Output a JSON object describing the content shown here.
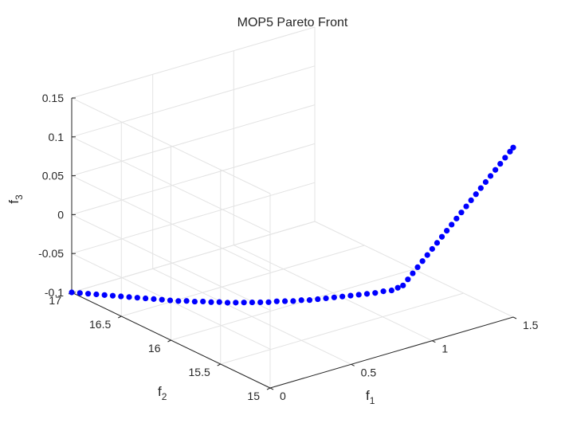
{
  "chart_data": {
    "type": "scatter",
    "title": "MOP5 Pareto Front",
    "xlabel": {
      "main": "f",
      "sub": "1"
    },
    "ylabel": {
      "main": "f",
      "sub": "2"
    },
    "zlabel": {
      "main": "f",
      "sub": "3"
    },
    "xlim": [
      0,
      1.5
    ],
    "ylim": [
      15,
      17
    ],
    "zlim": [
      -0.1,
      0.15
    ],
    "x_ticks": [
      "0",
      "0.5",
      "1",
      "1.5"
    ],
    "y_ticks": [
      "15",
      "15.5",
      "16",
      "16.5",
      "17"
    ],
    "z_ticks": [
      "-0.1",
      "-0.05",
      "0",
      "0.05",
      "0.1",
      "0.15"
    ],
    "grid": true,
    "marker_color": "#0000ff",
    "points": [
      [
        0.0,
        17.0,
        -0.1
      ],
      [
        0.02,
        16.95,
        -0.099
      ],
      [
        0.04,
        16.9,
        -0.098
      ],
      [
        0.06,
        16.85,
        -0.097
      ],
      [
        0.08,
        16.8,
        -0.096
      ],
      [
        0.1,
        16.75,
        -0.095
      ],
      [
        0.12,
        16.7,
        -0.094
      ],
      [
        0.14,
        16.65,
        -0.093
      ],
      [
        0.16,
        16.6,
        -0.092
      ],
      [
        0.18,
        16.55,
        -0.091
      ],
      [
        0.2,
        16.5,
        -0.09
      ],
      [
        0.22,
        16.45,
        -0.089
      ],
      [
        0.24,
        16.4,
        -0.088
      ],
      [
        0.26,
        16.35,
        -0.087
      ],
      [
        0.28,
        16.3,
        -0.085
      ],
      [
        0.3,
        16.25,
        -0.084
      ],
      [
        0.32,
        16.2,
        -0.082
      ],
      [
        0.34,
        16.15,
        -0.081
      ],
      [
        0.36,
        16.1,
        -0.079
      ],
      [
        0.38,
        16.05,
        -0.078
      ],
      [
        0.4,
        16.0,
        -0.076
      ],
      [
        0.42,
        15.95,
        -0.074
      ],
      [
        0.44,
        15.9,
        -0.072
      ],
      [
        0.46,
        15.85,
        -0.07
      ],
      [
        0.48,
        15.8,
        -0.068
      ],
      [
        0.5,
        15.75,
        -0.065
      ],
      [
        0.52,
        15.7,
        -0.063
      ],
      [
        0.54,
        15.65,
        -0.061
      ],
      [
        0.56,
        15.6,
        -0.058
      ],
      [
        0.58,
        15.55,
        -0.056
      ],
      [
        0.6,
        15.5,
        -0.053
      ],
      [
        0.62,
        15.45,
        -0.05
      ],
      [
        0.64,
        15.4,
        -0.047
      ],
      [
        0.66,
        15.35,
        -0.044
      ],
      [
        0.68,
        15.3,
        -0.041
      ],
      [
        0.7,
        15.25,
        -0.038
      ],
      [
        0.72,
        15.2,
        -0.035
      ],
      [
        0.74,
        15.15,
        -0.032
      ],
      [
        0.76,
        15.1,
        -0.028
      ],
      [
        0.78,
        15.05,
        -0.025
      ],
      [
        0.8,
        15.02,
        -0.021
      ],
      [
        0.82,
        15.0,
        -0.018
      ],
      [
        0.85,
        15.0,
        -0.012
      ],
      [
        0.88,
        15.0,
        -0.006
      ],
      [
        0.91,
        15.0,
        0.0
      ],
      [
        0.94,
        15.0,
        0.006
      ],
      [
        0.97,
        15.0,
        0.012
      ],
      [
        1.0,
        15.0,
        0.018
      ],
      [
        1.03,
        15.0,
        0.024
      ],
      [
        1.06,
        15.0,
        0.03
      ],
      [
        1.09,
        15.0,
        0.036
      ],
      [
        1.12,
        15.0,
        0.042
      ],
      [
        1.15,
        15.0,
        0.048
      ],
      [
        1.18,
        15.0,
        0.054
      ],
      [
        1.21,
        15.0,
        0.06
      ],
      [
        1.24,
        15.0,
        0.066
      ],
      [
        1.27,
        15.0,
        0.072
      ],
      [
        1.3,
        15.0,
        0.078
      ],
      [
        1.33,
        15.0,
        0.084
      ],
      [
        1.36,
        15.0,
        0.09
      ],
      [
        1.39,
        15.0,
        0.096
      ],
      [
        1.42,
        15.0,
        0.102
      ],
      [
        1.45,
        15.0,
        0.108
      ],
      [
        1.48,
        15.0,
        0.114
      ],
      [
        1.5,
        15.0,
        0.118
      ]
    ]
  }
}
